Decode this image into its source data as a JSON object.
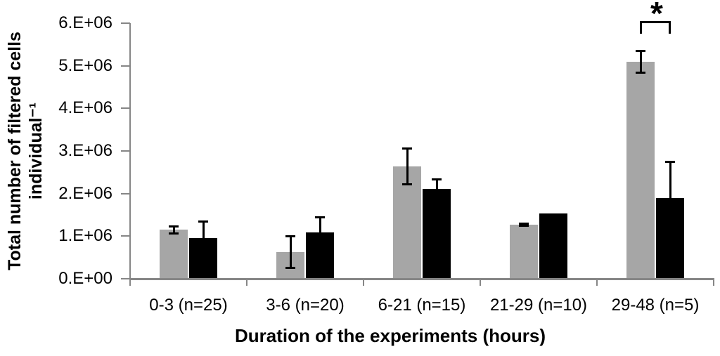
{
  "figure": {
    "background": "#ffffff",
    "text_color": "#000000"
  },
  "chart_data": {
    "type": "bar",
    "title": "",
    "xlabel": "Duration of the experiments (hours)",
    "ylabel_line1": "Total number of filtered cells",
    "ylabel_line2": "individual⁻¹",
    "categories": [
      "0-3 (n=25)",
      "3-6 (n=20)",
      "6-21 (n=15)",
      "21-29 (n=10)",
      "29-48 (n=5)"
    ],
    "series": [
      {
        "name": "gray-bars",
        "color": "#a6a6a6",
        "values": [
          1150000,
          630000,
          2640000,
          1270000,
          5090000
        ],
        "errors": [
          80000,
          370000,
          420000,
          30000,
          260000
        ]
      },
      {
        "name": "black-bars",
        "color": "#000000",
        "values": [
          960000,
          1090000,
          2110000,
          1530000,
          1900000
        ],
        "errors": [
          380000,
          360000,
          220000,
          0,
          850000
        ]
      }
    ],
    "ylim": [
      0,
      6000000
    ],
    "ytick_values": [
      0,
      1000000,
      2000000,
      3000000,
      4000000,
      5000000,
      6000000
    ],
    "ytick_labels": [
      "0.E+00",
      "1.E+06",
      "2.E+06",
      "3.E+06",
      "4.E+06",
      "5.E+06",
      "6.E+06"
    ],
    "grid": false,
    "legend": "none",
    "axis_color": "#868686",
    "error_bar_color": "#000000",
    "annotations": [
      {
        "type": "significance-bracket",
        "label": "*",
        "category": "29-48 (n=5)",
        "category_index": 4,
        "between": [
          "gray-bars",
          "black-bars"
        ]
      }
    ]
  }
}
